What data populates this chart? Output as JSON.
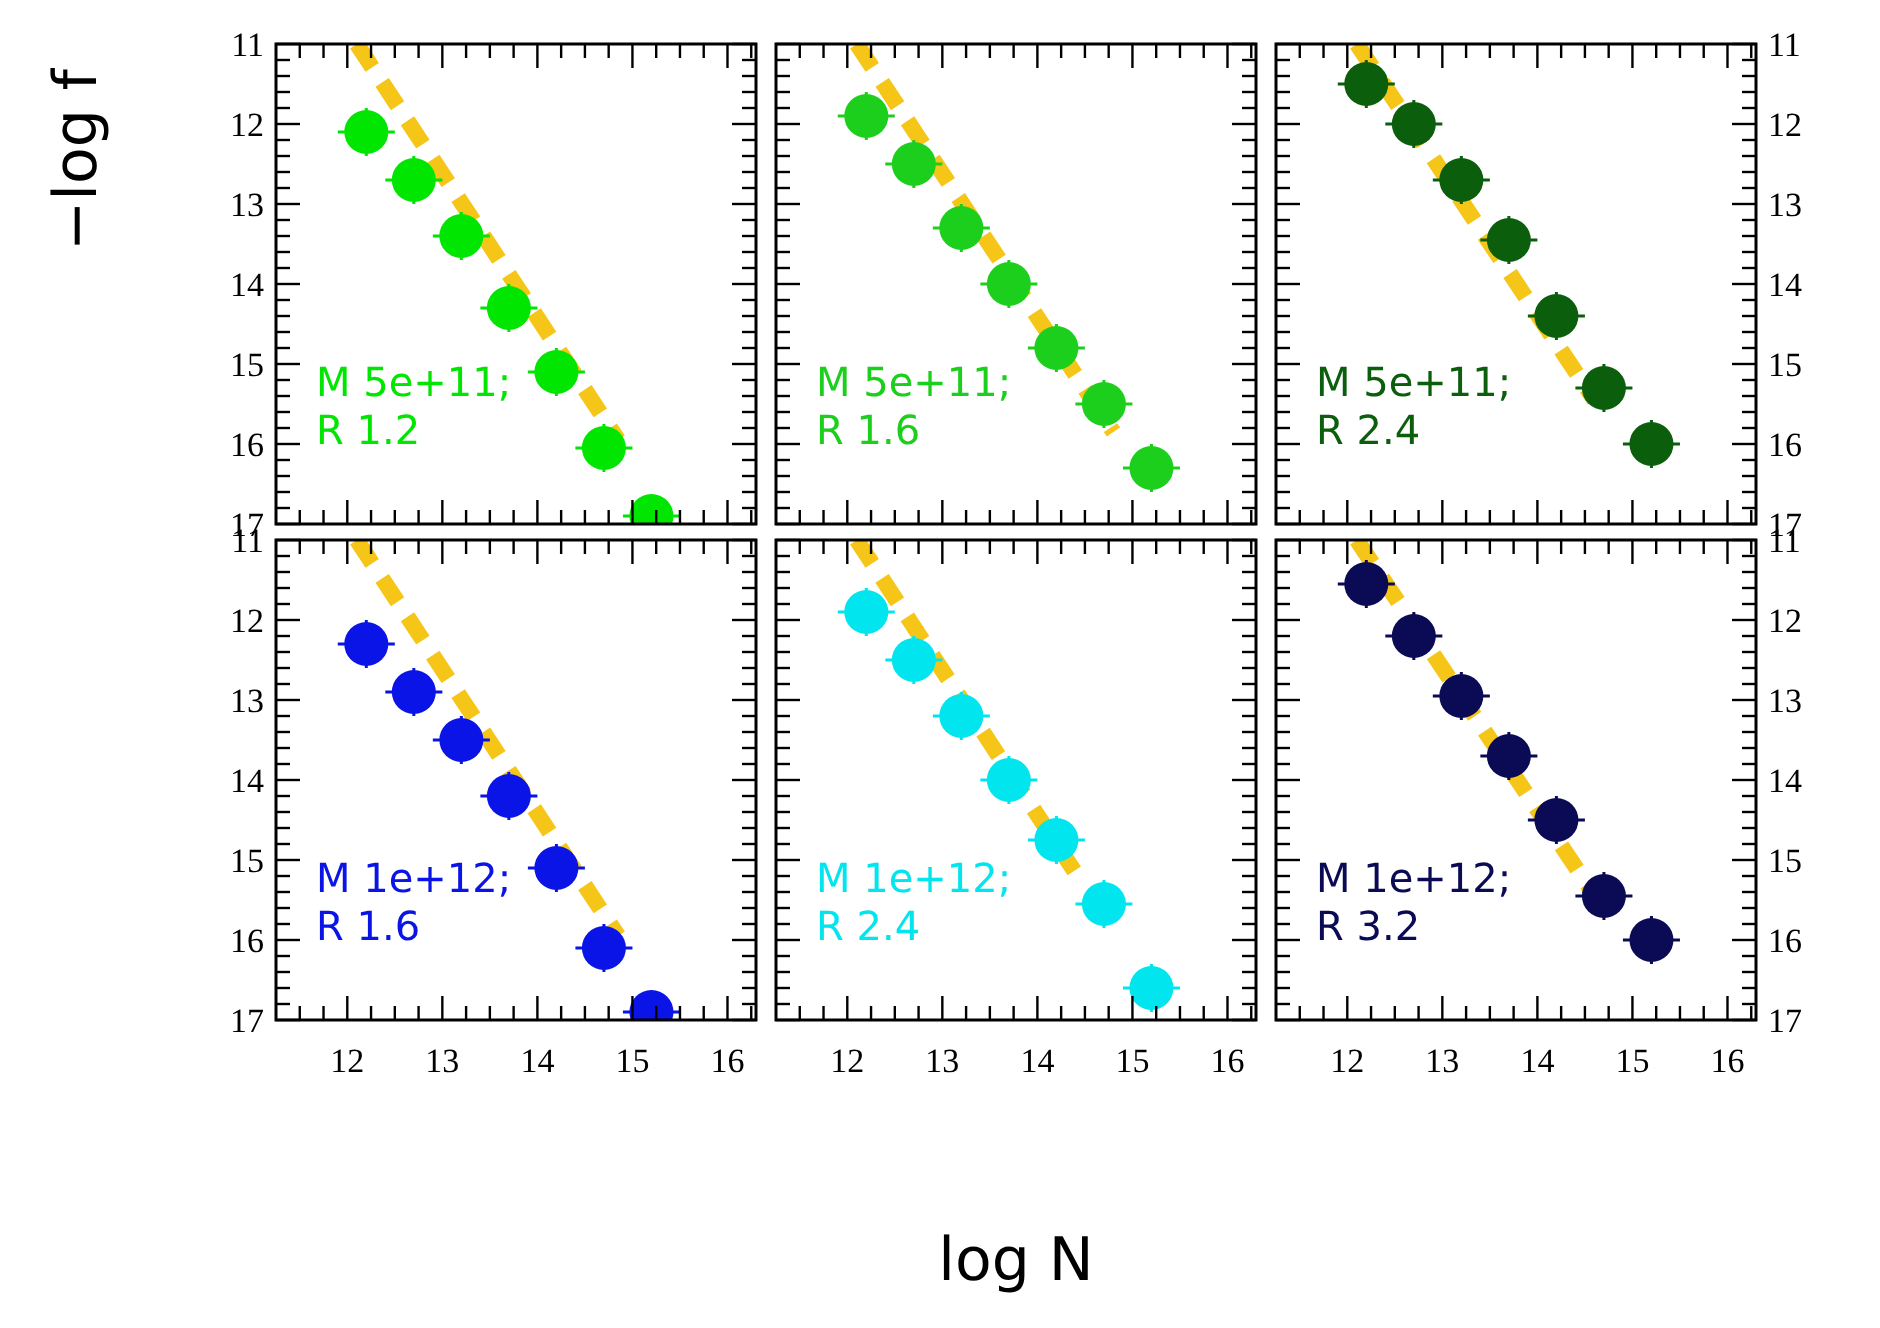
{
  "chart_data": [
    {
      "type": "scatter",
      "ylabel": "−log f",
      "marker": "circle",
      "tick_labels": "y",
      "annotations": [
        "M 5e+11;",
        "R 1.2"
      ],
      "xlim": [
        11.25,
        16.3
      ],
      "ylim": [
        17,
        11
      ],
      "xticks": [
        {
          "value": 11.5,
          "label": null
        },
        {
          "value": 11.75,
          "label": null
        },
        12,
        {
          "value": 12.25,
          "label": null
        },
        {
          "value": 12.5,
          "label": null
        },
        {
          "value": 12.75,
          "label": null
        },
        13,
        {
          "value": 13.25,
          "label": null
        },
        {
          "value": 13.5,
          "label": null
        },
        {
          "value": 13.75,
          "label": null
        },
        14,
        {
          "value": 14.25,
          "label": null
        },
        {
          "value": 14.5,
          "label": null
        },
        {
          "value": 14.75,
          "label": null
        },
        15,
        {
          "value": 15.25,
          "label": null
        },
        {
          "value": 15.5,
          "label": null
        },
        {
          "value": 15.75,
          "label": null
        },
        16,
        {
          "value": 16.25,
          "label": null
        }
      ],
      "yticks": [
        11,
        {
          "value": 11.2,
          "label": null
        },
        {
          "value": 11.4,
          "label": null
        },
        {
          "value": 11.6,
          "label": null
        },
        {
          "value": 11.8,
          "label": null
        },
        12,
        {
          "value": 12.2,
          "label": null
        },
        {
          "value": 12.4,
          "label": null
        },
        {
          "value": 12.6,
          "label": null
        },
        {
          "value": 12.8,
          "label": null
        },
        13,
        {
          "value": 13.2,
          "label": null
        },
        {
          "value": 13.4,
          "label": null
        },
        {
          "value": 13.6,
          "label": null
        },
        {
          "value": 13.8,
          "label": null
        },
        14,
        {
          "value": 14.2,
          "label": null
        },
        {
          "value": 14.4,
          "label": null
        },
        {
          "value": 14.6,
          "label": null
        },
        {
          "value": 14.8,
          "label": null
        },
        15,
        {
          "value": 15.2,
          "label": null
        },
        {
          "value": 15.4,
          "label": null
        },
        {
          "value": 15.6,
          "label": null
        },
        {
          "value": 15.8,
          "label": null
        },
        16,
        {
          "value": 16.2,
          "label": null
        },
        {
          "value": 16.4,
          "label": null
        },
        {
          "value": 16.6,
          "label": null
        },
        {
          "value": 16.8,
          "label": null
        },
        17
      ],
      "series": [
        {
          "type": "line",
          "color": "#f5c518",
          "line_style": "dashed",
          "x": [
            12.1,
            14.85
          ],
          "values": [
            11,
            15.95
          ],
          "marker": "none"
        },
        {
          "color": "#00e600",
          "x": [
            12.2,
            12.7,
            13.2,
            13.7,
            14.2,
            14.7,
            15.2
          ],
          "values": [
            12.1,
            12.7,
            13.4,
            14.3,
            15.1,
            16.05,
            16.9
          ],
          "errors": [
            0.3,
            0.3,
            0.3,
            0.3,
            0.3,
            0.3,
            null
          ],
          "xerrors": [
            0.3,
            0.3,
            0.3,
            0.3,
            0.3,
            0.3,
            0.3
          ]
        }
      ]
    },
    {
      "type": "scatter",
      "marker": "circle",
      "tick_labels": false,
      "annotations": [
        "M 5e+11;",
        "R 1.6"
      ],
      "xlim": [
        11.25,
        16.3
      ],
      "ylim": [
        17,
        11
      ],
      "xticks": [
        {
          "value": 11.5,
          "label": null
        },
        {
          "value": 11.75,
          "label": null
        },
        12,
        {
          "value": 12.25,
          "label": null
        },
        {
          "value": 12.5,
          "label": null
        },
        {
          "value": 12.75,
          "label": null
        },
        13,
        {
          "value": 13.25,
          "label": null
        },
        {
          "value": 13.5,
          "label": null
        },
        {
          "value": 13.75,
          "label": null
        },
        14,
        {
          "value": 14.25,
          "label": null
        },
        {
          "value": 14.5,
          "label": null
        },
        {
          "value": 14.75,
          "label": null
        },
        15,
        {
          "value": 15.25,
          "label": null
        },
        {
          "value": 15.5,
          "label": null
        },
        {
          "value": 15.75,
          "label": null
        },
        16,
        {
          "value": 16.25,
          "label": null
        }
      ],
      "yticks": [
        11,
        {
          "value": 11.2,
          "label": null
        },
        {
          "value": 11.4,
          "label": null
        },
        {
          "value": 11.6,
          "label": null
        },
        {
          "value": 11.8,
          "label": null
        },
        12,
        {
          "value": 12.2,
          "label": null
        },
        {
          "value": 12.4,
          "label": null
        },
        {
          "value": 12.6,
          "label": null
        },
        {
          "value": 12.8,
          "label": null
        },
        13,
        {
          "value": 13.2,
          "label": null
        },
        {
          "value": 13.4,
          "label": null
        },
        {
          "value": 13.6,
          "label": null
        },
        {
          "value": 13.8,
          "label": null
        },
        14,
        {
          "value": 14.2,
          "label": null
        },
        {
          "value": 14.4,
          "label": null
        },
        {
          "value": 14.6,
          "label": null
        },
        {
          "value": 14.8,
          "label": null
        },
        15,
        {
          "value": 15.2,
          "label": null
        },
        {
          "value": 15.4,
          "label": null
        },
        {
          "value": 15.6,
          "label": null
        },
        {
          "value": 15.8,
          "label": null
        },
        16,
        {
          "value": 16.2,
          "label": null
        },
        {
          "value": 16.4,
          "label": null
        },
        {
          "value": 16.6,
          "label": null
        },
        {
          "value": 16.8,
          "label": null
        },
        17
      ],
      "series": [
        {
          "type": "line",
          "color": "#f5c518",
          "line_style": "dashed",
          "x": [
            12.1,
            14.8
          ],
          "values": [
            11,
            15.85
          ],
          "marker": "none"
        },
        {
          "color": "#1ccf1c",
          "x": [
            12.2,
            12.7,
            13.2,
            13.7,
            14.2,
            14.7,
            15.2
          ],
          "values": [
            11.9,
            12.5,
            13.3,
            14.0,
            14.8,
            15.5,
            16.3
          ],
          "errors": [
            0.3,
            0.3,
            0.3,
            0.3,
            0.3,
            0.3,
            0.3
          ],
          "xerrors": [
            0.3,
            0.3,
            0.3,
            0.3,
            0.3,
            0.3,
            0.3
          ]
        }
      ]
    },
    {
      "type": "scatter",
      "marker": "circle",
      "tick_labels": "y",
      "annotations": [
        "M 5e+11;",
        "R 2.4"
      ],
      "xlim": [
        11.25,
        16.3
      ],
      "y2lim": [
        17,
        11
      ],
      "xticks": [
        {
          "value": 11.5,
          "label": null
        },
        {
          "value": 11.75,
          "label": null
        },
        12,
        {
          "value": 12.25,
          "label": null
        },
        {
          "value": 12.5,
          "label": null
        },
        {
          "value": 12.75,
          "label": null
        },
        13,
        {
          "value": 13.25,
          "label": null
        },
        {
          "value": 13.5,
          "label": null
        },
        {
          "value": 13.75,
          "label": null
        },
        14,
        {
          "value": 14.25,
          "label": null
        },
        {
          "value": 14.5,
          "label": null
        },
        {
          "value": 14.75,
          "label": null
        },
        15,
        {
          "value": 15.25,
          "label": null
        },
        {
          "value": 15.5,
          "label": null
        },
        {
          "value": 15.75,
          "label": null
        },
        16,
        {
          "value": 16.25,
          "label": null
        }
      ],
      "y2ticks": [
        11,
        {
          "value": 11.2,
          "label": null
        },
        {
          "value": 11.4,
          "label": null
        },
        {
          "value": 11.6,
          "label": null
        },
        {
          "value": 11.8,
          "label": null
        },
        12,
        {
          "value": 12.2,
          "label": null
        },
        {
          "value": 12.4,
          "label": null
        },
        {
          "value": 12.6,
          "label": null
        },
        {
          "value": 12.8,
          "label": null
        },
        13,
        {
          "value": 13.2,
          "label": null
        },
        {
          "value": 13.4,
          "label": null
        },
        {
          "value": 13.6,
          "label": null
        },
        {
          "value": 13.8,
          "label": null
        },
        14,
        {
          "value": 14.2,
          "label": null
        },
        {
          "value": 14.4,
          "label": null
        },
        {
          "value": 14.6,
          "label": null
        },
        {
          "value": 14.8,
          "label": null
        },
        15,
        {
          "value": 15.2,
          "label": null
        },
        {
          "value": 15.4,
          "label": null
        },
        {
          "value": 15.6,
          "label": null
        },
        {
          "value": 15.8,
          "label": null
        },
        16,
        {
          "value": 16.2,
          "label": null
        },
        {
          "value": 16.4,
          "label": null
        },
        {
          "value": 16.6,
          "label": null
        },
        {
          "value": 16.8,
          "label": null
        },
        17
      ],
      "series": [
        {
          "type": "line",
          "axis": "y2",
          "color": "#f5c518",
          "line_style": "dashed",
          "x": [
            12.1,
            14.6
          ],
          "values": [
            11,
            15.45
          ],
          "marker": "none"
        },
        {
          "axis": "y2",
          "color": "#0b5e0b",
          "x": [
            12.2,
            12.7,
            13.2,
            13.7,
            14.2,
            14.7,
            15.2
          ],
          "values": [
            11.5,
            12.0,
            12.7,
            13.45,
            14.4,
            15.3,
            16.0
          ],
          "errors": [
            0.3,
            0.3,
            0.3,
            0.3,
            0.3,
            0.3,
            0.3
          ],
          "xerrors": [
            0.3,
            0.3,
            0.3,
            0.3,
            0.3,
            0.3,
            0.3
          ]
        }
      ]
    },
    {
      "type": "scatter",
      "marker": "circle",
      "annotations": [
        "M 1e+12;",
        "R 1.6"
      ],
      "xlim": [
        11.25,
        16.3
      ],
      "ylim": [
        17,
        11
      ],
      "xticks": [
        {
          "value": 11.5,
          "label": null
        },
        {
          "value": 11.75,
          "label": null
        },
        12,
        {
          "value": 12.25,
          "label": null
        },
        {
          "value": 12.5,
          "label": null
        },
        {
          "value": 12.75,
          "label": null
        },
        13,
        {
          "value": 13.25,
          "label": null
        },
        {
          "value": 13.5,
          "label": null
        },
        {
          "value": 13.75,
          "label": null
        },
        14,
        {
          "value": 14.25,
          "label": null
        },
        {
          "value": 14.5,
          "label": null
        },
        {
          "value": 14.75,
          "label": null
        },
        15,
        {
          "value": 15.25,
          "label": null
        },
        {
          "value": 15.5,
          "label": null
        },
        {
          "value": 15.75,
          "label": null
        },
        16,
        {
          "value": 16.25,
          "label": null
        }
      ],
      "yticks": [
        11,
        {
          "value": 11.2,
          "label": null
        },
        {
          "value": 11.4,
          "label": null
        },
        {
          "value": 11.6,
          "label": null
        },
        {
          "value": 11.8,
          "label": null
        },
        12,
        {
          "value": 12.2,
          "label": null
        },
        {
          "value": 12.4,
          "label": null
        },
        {
          "value": 12.6,
          "label": null
        },
        {
          "value": 12.8,
          "label": null
        },
        13,
        {
          "value": 13.2,
          "label": null
        },
        {
          "value": 13.4,
          "label": null
        },
        {
          "value": 13.6,
          "label": null
        },
        {
          "value": 13.8,
          "label": null
        },
        14,
        {
          "value": 14.2,
          "label": null
        },
        {
          "value": 14.4,
          "label": null
        },
        {
          "value": 14.6,
          "label": null
        },
        {
          "value": 14.8,
          "label": null
        },
        15,
        {
          "value": 15.2,
          "label": null
        },
        {
          "value": 15.4,
          "label": null
        },
        {
          "value": 15.6,
          "label": null
        },
        {
          "value": 15.8,
          "label": null
        },
        16,
        {
          "value": 16.2,
          "label": null
        },
        {
          "value": 16.4,
          "label": null
        },
        {
          "value": 16.6,
          "label": null
        },
        {
          "value": 16.8,
          "label": null
        },
        17
      ],
      "series": [
        {
          "type": "line",
          "color": "#f5c518",
          "line_style": "dashed",
          "x": [
            12.1,
            14.85
          ],
          "values": [
            11,
            15.95
          ],
          "marker": "none"
        },
        {
          "color": "#0a14e6",
          "x": [
            12.2,
            12.7,
            13.2,
            13.7,
            14.2,
            14.7,
            15.2
          ],
          "values": [
            12.3,
            12.9,
            13.5,
            14.2,
            15.1,
            16.1,
            16.9
          ],
          "errors": [
            0.3,
            0.3,
            0.3,
            0.3,
            0.3,
            0.3,
            null
          ],
          "xerrors": [
            0.3,
            0.3,
            0.3,
            0.3,
            0.3,
            0.3,
            0.3
          ]
        }
      ]
    },
    {
      "type": "scatter",
      "xlabel": "log N",
      "marker": "circle",
      "tick_labels": "x",
      "annotations": [
        "M 1e+12;",
        "R 2.4"
      ],
      "xlim": [
        11.25,
        16.3
      ],
      "ylim": [
        17,
        11
      ],
      "xticks": [
        {
          "value": 11.5,
          "label": null
        },
        {
          "value": 11.75,
          "label": null
        },
        12,
        {
          "value": 12.25,
          "label": null
        },
        {
          "value": 12.5,
          "label": null
        },
        {
          "value": 12.75,
          "label": null
        },
        13,
        {
          "value": 13.25,
          "label": null
        },
        {
          "value": 13.5,
          "label": null
        },
        {
          "value": 13.75,
          "label": null
        },
        14,
        {
          "value": 14.25,
          "label": null
        },
        {
          "value": 14.5,
          "label": null
        },
        {
          "value": 14.75,
          "label": null
        },
        15,
        {
          "value": 15.25,
          "label": null
        },
        {
          "value": 15.5,
          "label": null
        },
        {
          "value": 15.75,
          "label": null
        },
        16,
        {
          "value": 16.25,
          "label": null
        }
      ],
      "yticks": [
        11,
        {
          "value": 11.2,
          "label": null
        },
        {
          "value": 11.4,
          "label": null
        },
        {
          "value": 11.6,
          "label": null
        },
        {
          "value": 11.8,
          "label": null
        },
        12,
        {
          "value": 12.2,
          "label": null
        },
        {
          "value": 12.4,
          "label": null
        },
        {
          "value": 12.6,
          "label": null
        },
        {
          "value": 12.8,
          "label": null
        },
        13,
        {
          "value": 13.2,
          "label": null
        },
        {
          "value": 13.4,
          "label": null
        },
        {
          "value": 13.6,
          "label": null
        },
        {
          "value": 13.8,
          "label": null
        },
        14,
        {
          "value": 14.2,
          "label": null
        },
        {
          "value": 14.4,
          "label": null
        },
        {
          "value": 14.6,
          "label": null
        },
        {
          "value": 14.8,
          "label": null
        },
        15,
        {
          "value": 15.2,
          "label": null
        },
        {
          "value": 15.4,
          "label": null
        },
        {
          "value": 15.6,
          "label": null
        },
        {
          "value": 15.8,
          "label": null
        },
        16,
        {
          "value": 16.2,
          "label": null
        },
        {
          "value": 16.4,
          "label": null
        },
        {
          "value": 16.6,
          "label": null
        },
        {
          "value": 16.8,
          "label": null
        },
        17
      ],
      "series": [
        {
          "type": "line",
          "color": "#f5c518",
          "line_style": "dashed",
          "x": [
            12.1,
            14.45
          ],
          "values": [
            11,
            15.25
          ],
          "marker": "none"
        },
        {
          "color": "#00e5ee",
          "x": [
            12.2,
            12.7,
            13.2,
            13.7,
            14.2,
            14.7,
            15.2
          ],
          "values": [
            11.9,
            12.5,
            13.2,
            14.0,
            14.75,
            15.55,
            16.6
          ],
          "errors": [
            0.3,
            0.3,
            0.3,
            0.3,
            0.3,
            0.3,
            0.3
          ],
          "xerrors": [
            0.3,
            0.3,
            0.3,
            0.3,
            0.3,
            0.3,
            0.3
          ]
        }
      ]
    },
    {
      "type": "scatter",
      "marker": "circle",
      "annotations": [
        "M 1e+12;",
        "R 3.2"
      ],
      "xlim": [
        11.25,
        16.3
      ],
      "y2lim": [
        17,
        11
      ],
      "xticks": [
        {
          "value": 11.5,
          "label": null
        },
        {
          "value": 11.75,
          "label": null
        },
        12,
        {
          "value": 12.25,
          "label": null
        },
        {
          "value": 12.5,
          "label": null
        },
        {
          "value": 12.75,
          "label": null
        },
        13,
        {
          "value": 13.25,
          "label": null
        },
        {
          "value": 13.5,
          "label": null
        },
        {
          "value": 13.75,
          "label": null
        },
        14,
        {
          "value": 14.25,
          "label": null
        },
        {
          "value": 14.5,
          "label": null
        },
        {
          "value": 14.75,
          "label": null
        },
        15,
        {
          "value": 15.25,
          "label": null
        },
        {
          "value": 15.5,
          "label": null
        },
        {
          "value": 15.75,
          "label": null
        },
        16,
        {
          "value": 16.25,
          "label": null
        }
      ],
      "y2ticks": [
        11,
        {
          "value": 11.2,
          "label": null
        },
        {
          "value": 11.4,
          "label": null
        },
        {
          "value": 11.6,
          "label": null
        },
        {
          "value": 11.8,
          "label": null
        },
        12,
        {
          "value": 12.2,
          "label": null
        },
        {
          "value": 12.4,
          "label": null
        },
        {
          "value": 12.6,
          "label": null
        },
        {
          "value": 12.8,
          "label": null
        },
        13,
        {
          "value": 13.2,
          "label": null
        },
        {
          "value": 13.4,
          "label": null
        },
        {
          "value": 13.6,
          "label": null
        },
        {
          "value": 13.8,
          "label": null
        },
        14,
        {
          "value": 14.2,
          "label": null
        },
        {
          "value": 14.4,
          "label": null
        },
        {
          "value": 14.6,
          "label": null
        },
        {
          "value": 14.8,
          "label": null
        },
        15,
        {
          "value": 15.2,
          "label": null
        },
        {
          "value": 15.4,
          "label": null
        },
        {
          "value": 15.6,
          "label": null
        },
        {
          "value": 15.8,
          "label": null
        },
        16,
        {
          "value": 16.2,
          "label": null
        },
        {
          "value": 16.4,
          "label": null
        },
        {
          "value": 16.6,
          "label": null
        },
        {
          "value": 16.8,
          "label": null
        },
        17
      ],
      "series": [
        {
          "type": "line",
          "axis": "y2",
          "color": "#f5c518",
          "line_style": "dashed",
          "x": [
            12.1,
            14.55
          ],
          "values": [
            11,
            15.35
          ],
          "marker": "none"
        },
        {
          "axis": "y2",
          "color": "#0a0a55",
          "x": [
            12.2,
            12.7,
            13.2,
            13.7,
            14.2,
            14.7,
            15.2
          ],
          "values": [
            11.55,
            12.2,
            12.95,
            13.7,
            14.5,
            15.45,
            16.0
          ],
          "errors": [
            0.3,
            0.3,
            0.3,
            0.3,
            0.3,
            0.3,
            0.3
          ],
          "xerrors": [
            0.3,
            0.3,
            0.3,
            0.3,
            0.3,
            0.3,
            0.3
          ]
        }
      ]
    }
  ]
}
